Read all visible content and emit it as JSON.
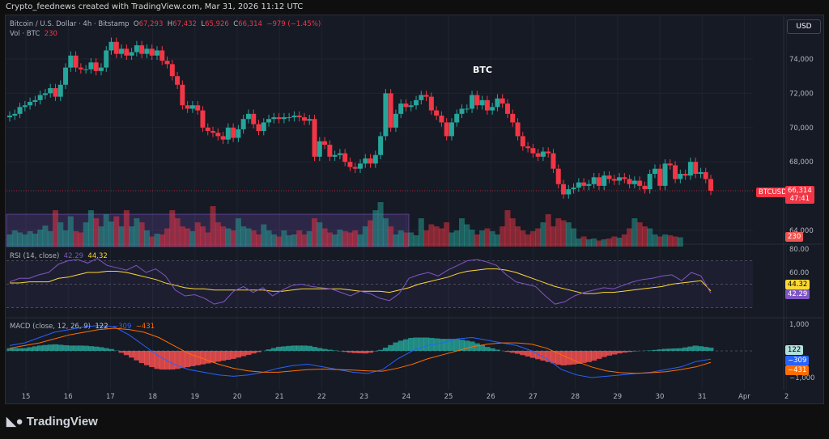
{
  "credit": "Crypto_feednews created with TradingView.com, Mar 31, 2026 11:12 UTC",
  "legend": {
    "symbol": "Bitcoin / U.S. Dollar · 4h · Bitstamp",
    "o_label": "O",
    "o": "67,293",
    "h_label": "H",
    "h": "67,432",
    "l_label": "L",
    "l": "65,926",
    "c_label": "C",
    "c": "66,314",
    "change": "−979 (−1.45%)",
    "vol_label": "Vol · BTC",
    "vol": "230"
  },
  "currency_button": "USD",
  "annotation": "BTC",
  "price_tag": {
    "symbol": "BTCUSD",
    "price": "66,314",
    "countdown": "47:41",
    "volume": "230"
  },
  "rsi": {
    "label": "RSI (14, close)",
    "value": "42.29",
    "ma": "44.32"
  },
  "macd": {
    "label": "MACD (close, 12, 26, 9)",
    "hist": "122",
    "macd": "−309",
    "signal": "−431"
  },
  "logo": "TradingView",
  "colors": {
    "up": "#26a69a",
    "down": "#f23645",
    "rsi": "#7e57c2",
    "rsi_ma": "#fdd835",
    "macd": "#2962ff",
    "signal": "#ff6d00"
  },
  "chart_data": {
    "type": "candlestick",
    "interval": "4h",
    "y_ticks": [
      "74,000",
      "72,000",
      "70,000",
      "68,000",
      "64,000"
    ],
    "y_tick_values": [
      74000,
      72000,
      70000,
      68000,
      64000
    ],
    "x_ticks": [
      "15",
      "16",
      "17",
      "18",
      "19",
      "20",
      "21",
      "22",
      "23",
      "24",
      "25",
      "26",
      "27",
      "28",
      "29",
      "30",
      "31",
      "Apr",
      "2"
    ],
    "closes": [
      70.7,
      70.8,
      71.2,
      71.3,
      71.5,
      71.6,
      71.9,
      72.0,
      72.3,
      71.8,
      72.5,
      73.5,
      74.2,
      73.5,
      73.4,
      73.4,
      73.8,
      73.3,
      73.5,
      74.5,
      75.0,
      74.3,
      74.6,
      74.2,
      74.4,
      74.8,
      74.3,
      74.6,
      74.2,
      74.5,
      73.9,
      73.7,
      73.0,
      72.5,
      71.3,
      71.1,
      71.3,
      71.0,
      70.0,
      69.8,
      69.7,
      69.5,
      69.3,
      70.0,
      69.4,
      69.9,
      70.5,
      70.8,
      70.2,
      69.8,
      70.3,
      70.5,
      70.6,
      70.5,
      70.6,
      70.6,
      70.7,
      70.6,
      70.4,
      70.5,
      68.3,
      69.2,
      69.0,
      68.3,
      68.4,
      68.5,
      68.0,
      67.7,
      67.6,
      67.9,
      68.2,
      67.9,
      68.4,
      69.5,
      72.0,
      70.0,
      70.8,
      71.4,
      71.2,
      71.3,
      71.6,
      71.9,
      71.8,
      71.0,
      70.7,
      70.3,
      69.5,
      70.3,
      70.8,
      71.1,
      71.1,
      71.9,
      71.3,
      71.6,
      71.0,
      71.2,
      71.7,
      71.4,
      70.8,
      70.3,
      69.5,
      68.9,
      68.8,
      68.5,
      68.3,
      68.6,
      68.5,
      67.6,
      66.7,
      66.1,
      66.4,
      66.5,
      66.8,
      66.6,
      66.7,
      67.1,
      66.6,
      67.2,
      67.0,
      66.9,
      67.1,
      67.0,
      66.7,
      66.9,
      66.6,
      66.4,
      67.3,
      67.6,
      66.6,
      67.9,
      67.8,
      67.0,
      67.3,
      67.2,
      68.0,
      67.3,
      67.4,
      67.0,
      66.314
    ],
    "close_units": "thousand USD",
    "volumes": [
      300,
      400,
      350,
      300,
      380,
      320,
      420,
      520,
      380,
      900,
      600,
      400,
      750,
      380,
      350,
      600,
      900,
      700,
      500,
      800,
      620,
      750,
      500,
      900,
      500,
      700,
      600,
      400,
      250,
      320,
      300,
      450,
      900,
      700,
      500,
      450,
      380,
      600,
      500,
      350,
      1000,
      600,
      500,
      450,
      400,
      700,
      500,
      450,
      400,
      300,
      550,
      400,
      300,
      250,
      400,
      280,
      300,
      400,
      300,
      380,
      700,
      600,
      450,
      350,
      300,
      420,
      380,
      350,
      400,
      300,
      500,
      650,
      900,
      1100,
      700,
      500,
      300,
      400,
      350,
      350,
      280,
      700,
      400,
      550,
      500,
      450,
      600,
      350,
      400,
      700,
      550,
      420,
      300,
      400,
      450,
      380,
      300,
      500,
      900,
      700,
      500,
      400,
      300,
      380,
      450,
      600,
      800,
      500,
      700,
      650,
      600,
      450,
      200,
      250,
      180,
      200,
      150,
      180,
      200,
      250,
      220,
      300,
      450,
      700,
      600,
      500,
      450,
      300,
      250,
      300,
      280,
      250,
      230
    ],
    "rsi": [
      52,
      55,
      55,
      58,
      60,
      67,
      70,
      71,
      68,
      72,
      66,
      64,
      62,
      66,
      60,
      63,
      57,
      45,
      40,
      41,
      38,
      33,
      35,
      44,
      48,
      43,
      47,
      40,
      45,
      49,
      50,
      48,
      47,
      46,
      43,
      40,
      44,
      42,
      38,
      36,
      42,
      55,
      58,
      60,
      57,
      62,
      66,
      70,
      71,
      69,
      66,
      58,
      52,
      50,
      48,
      40,
      33,
      35,
      40,
      43,
      45,
      47,
      46,
      49,
      52,
      54,
      55,
      57,
      58,
      53,
      60,
      57,
      42.29
    ],
    "rsi_ma": [
      51,
      51,
      52,
      52,
      52,
      55,
      56,
      58,
      60,
      60,
      61,
      61,
      60,
      58,
      56,
      54,
      51,
      49,
      47,
      46,
      46,
      45,
      45,
      45,
      45,
      45,
      45,
      44,
      44,
      45,
      46,
      46,
      46,
      46,
      46,
      45,
      44,
      44,
      44,
      43,
      45,
      47,
      50,
      52,
      54,
      56,
      59,
      61,
      62,
      63,
      63,
      62,
      60,
      57,
      54,
      51,
      48,
      46,
      44,
      42,
      42,
      43,
      43,
      44,
      45,
      46,
      47,
      48,
      50,
      51,
      52,
      53,
      44.32
    ],
    "macd": [
      200,
      300,
      500,
      700,
      800,
      900,
      950,
      900,
      600,
      200,
      -200,
      -500,
      -700,
      -800,
      -900,
      -950,
      -900,
      -800,
      -650,
      -550,
      -500,
      -600,
      -700,
      -800,
      -850,
      -700,
      -300,
      0,
      200,
      300,
      450,
      500,
      400,
      300,
      200,
      0,
      -300,
      -700,
      -900,
      -1000,
      -950,
      -900,
      -850,
      -800,
      -700,
      -600,
      -400,
      -309
    ],
    "signal": [
      100,
      200,
      300,
      450,
      600,
      700,
      800,
      850,
      800,
      700,
      500,
      200,
      -100,
      -300,
      -500,
      -650,
      -750,
      -800,
      -800,
      -750,
      -700,
      -680,
      -700,
      -720,
      -750,
      -760,
      -650,
      -500,
      -300,
      -150,
      0,
      150,
      250,
      300,
      300,
      250,
      100,
      -150,
      -400,
      -600,
      -750,
      -820,
      -840,
      -820,
      -780,
      -700,
      -600,
      -431
    ],
    "macd_range": [
      -1300,
      1400
    ],
    "rsi_range": [
      0,
      100
    ]
  }
}
